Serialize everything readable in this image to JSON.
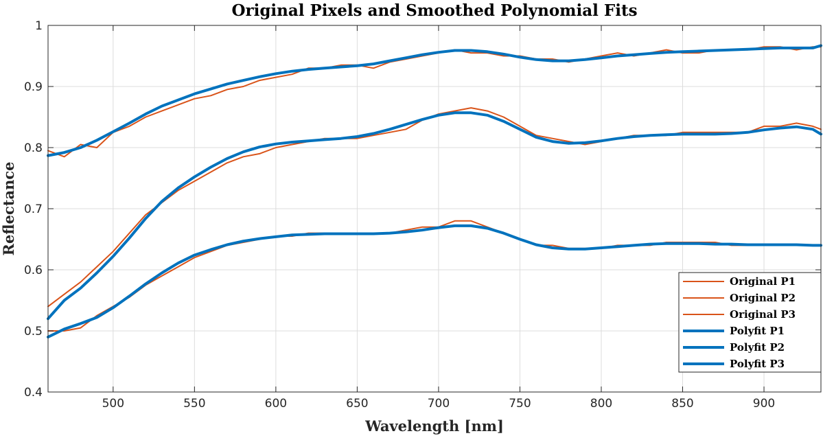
{
  "chart_data": {
    "type": "line",
    "title": "Original Pixels and Smoothed Polynomial Fits",
    "xlabel": "Wavelength [nm]",
    "ylabel": "Reflectance",
    "xlim": [
      460,
      935
    ],
    "ylim": [
      0.4,
      1.0
    ],
    "xticks": [
      500,
      550,
      600,
      650,
      700,
      750,
      800,
      850,
      900
    ],
    "yticks": [
      0.4,
      0.5,
      0.6,
      0.7,
      0.8,
      0.9,
      1.0
    ],
    "ytick_labels": [
      "0.4",
      "0.5",
      "0.6",
      "0.7",
      "0.8",
      "0.9",
      "1"
    ],
    "grid": true,
    "legend_position": "bottom-right",
    "colors": {
      "original": "#D95319",
      "polyfit": "#0072BD"
    },
    "x": [
      460,
      470,
      480,
      490,
      500,
      510,
      520,
      530,
      540,
      550,
      560,
      570,
      580,
      590,
      600,
      610,
      620,
      630,
      640,
      650,
      660,
      670,
      680,
      690,
      700,
      710,
      720,
      730,
      740,
      750,
      760,
      770,
      780,
      790,
      800,
      810,
      820,
      830,
      840,
      850,
      860,
      870,
      880,
      890,
      900,
      910,
      920,
      930,
      935
    ],
    "series": [
      {
        "name": "Original P1",
        "style": "original",
        "values": [
          0.795,
          0.785,
          0.805,
          0.8,
          0.825,
          0.835,
          0.85,
          0.86,
          0.87,
          0.88,
          0.885,
          0.895,
          0.9,
          0.91,
          0.915,
          0.92,
          0.93,
          0.93,
          0.935,
          0.935,
          0.93,
          0.94,
          0.945,
          0.95,
          0.955,
          0.96,
          0.955,
          0.955,
          0.95,
          0.95,
          0.945,
          0.945,
          0.94,
          0.945,
          0.95,
          0.955,
          0.95,
          0.955,
          0.96,
          0.955,
          0.955,
          0.96,
          0.96,
          0.96,
          0.965,
          0.965,
          0.96,
          0.965,
          0.965
        ]
      },
      {
        "name": "Original P2",
        "style": "original",
        "values": [
          0.54,
          0.56,
          0.58,
          0.605,
          0.63,
          0.66,
          0.69,
          0.71,
          0.73,
          0.745,
          0.76,
          0.775,
          0.785,
          0.79,
          0.8,
          0.805,
          0.81,
          0.815,
          0.815,
          0.815,
          0.82,
          0.825,
          0.83,
          0.845,
          0.855,
          0.86,
          0.865,
          0.86,
          0.85,
          0.835,
          0.82,
          0.815,
          0.81,
          0.805,
          0.81,
          0.815,
          0.82,
          0.82,
          0.82,
          0.825,
          0.825,
          0.825,
          0.825,
          0.825,
          0.835,
          0.835,
          0.84,
          0.835,
          0.83
        ]
      },
      {
        "name": "Original P3",
        "style": "original",
        "values": [
          0.5,
          0.5,
          0.505,
          0.525,
          0.54,
          0.555,
          0.575,
          0.59,
          0.605,
          0.62,
          0.63,
          0.64,
          0.645,
          0.65,
          0.655,
          0.655,
          0.66,
          0.66,
          0.66,
          0.66,
          0.66,
          0.66,
          0.665,
          0.67,
          0.67,
          0.68,
          0.68,
          0.67,
          0.66,
          0.65,
          0.64,
          0.64,
          0.635,
          0.635,
          0.635,
          0.64,
          0.64,
          0.64,
          0.645,
          0.645,
          0.645,
          0.645,
          0.64,
          0.64,
          0.64,
          0.64,
          0.64,
          0.64,
          0.64
        ]
      },
      {
        "name": "Polyfit P1",
        "style": "polyfit",
        "values": [
          0.787,
          0.792,
          0.8,
          0.812,
          0.826,
          0.84,
          0.855,
          0.868,
          0.878,
          0.888,
          0.896,
          0.904,
          0.91,
          0.916,
          0.921,
          0.925,
          0.928,
          0.93,
          0.932,
          0.934,
          0.937,
          0.942,
          0.947,
          0.952,
          0.956,
          0.959,
          0.959,
          0.957,
          0.953,
          0.948,
          0.944,
          0.942,
          0.942,
          0.944,
          0.947,
          0.95,
          0.952,
          0.954,
          0.956,
          0.957,
          0.958,
          0.959,
          0.96,
          0.961,
          0.962,
          0.963,
          0.963,
          0.963,
          0.967
        ]
      },
      {
        "name": "Polyfit P2",
        "style": "polyfit",
        "values": [
          0.52,
          0.55,
          0.57,
          0.595,
          0.622,
          0.652,
          0.684,
          0.712,
          0.734,
          0.752,
          0.768,
          0.782,
          0.793,
          0.801,
          0.806,
          0.809,
          0.811,
          0.813,
          0.815,
          0.818,
          0.823,
          0.83,
          0.838,
          0.846,
          0.853,
          0.857,
          0.857,
          0.853,
          0.843,
          0.83,
          0.817,
          0.81,
          0.807,
          0.808,
          0.811,
          0.815,
          0.818,
          0.82,
          0.821,
          0.822,
          0.822,
          0.822,
          0.823,
          0.825,
          0.829,
          0.832,
          0.834,
          0.83,
          0.822
        ]
      },
      {
        "name": "Polyfit P3",
        "style": "polyfit",
        "values": [
          0.49,
          0.503,
          0.512,
          0.522,
          0.538,
          0.557,
          0.577,
          0.595,
          0.611,
          0.624,
          0.633,
          0.641,
          0.647,
          0.651,
          0.654,
          0.657,
          0.658,
          0.659,
          0.659,
          0.659,
          0.659,
          0.66,
          0.662,
          0.665,
          0.669,
          0.672,
          0.672,
          0.668,
          0.66,
          0.65,
          0.641,
          0.636,
          0.634,
          0.634,
          0.636,
          0.638,
          0.64,
          0.642,
          0.643,
          0.643,
          0.643,
          0.642,
          0.642,
          0.641,
          0.641,
          0.641,
          0.641,
          0.64,
          0.64
        ]
      }
    ]
  }
}
